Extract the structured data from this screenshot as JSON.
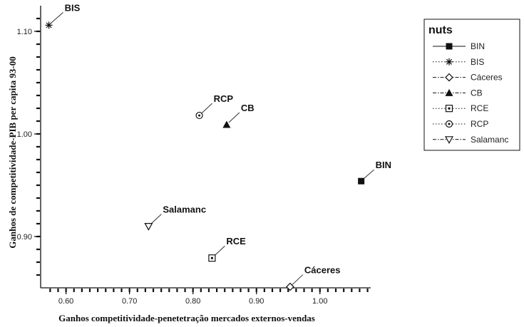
{
  "chart_data": {
    "type": "scatter",
    "xlabel": "Ganhos competitividade-penetetração mercados externos-vendas",
    "ylabel": "Ganhos de competitividade-PIB per capita 93-00",
    "xlim": [
      0.56,
      1.08
    ],
    "ylim": [
      0.85,
      1.125
    ],
    "xticks": [
      0.6,
      0.7,
      0.8,
      0.9,
      1.0
    ],
    "xtick_labels": [
      "0.60",
      "0.70",
      "0.80",
      "0.90",
      "1.00"
    ],
    "yticks": [
      0.9,
      1.0,
      1.1
    ],
    "ytick_labels": [
      "0.90",
      "1.00",
      "1.10"
    ],
    "legend": {
      "title": "nuts",
      "position": "top-right"
    },
    "series": [
      {
        "name": "BIN",
        "marker": "filled-square",
        "line": "solid",
        "x": 1.065,
        "y": 0.954,
        "label": "BIN"
      },
      {
        "name": "BIS",
        "marker": "asterisk",
        "line": "dotted",
        "x": 0.573,
        "y": 1.106,
        "label": "BIS"
      },
      {
        "name": "Cáceres",
        "marker": "diamond",
        "line": "dash-dot",
        "x": 0.953,
        "y": 0.851,
        "label": "Cáceres"
      },
      {
        "name": "CB",
        "marker": "filled-triangle",
        "line": "dash-dot",
        "x": 0.853,
        "y": 1.009,
        "label": "CB"
      },
      {
        "name": "RCE",
        "marker": "dotted-square",
        "line": "dotted",
        "x": 0.83,
        "y": 0.879,
        "label": "RCE"
      },
      {
        "name": "RCP",
        "marker": "dotted-circle",
        "line": "dotted",
        "x": 0.81,
        "y": 1.018,
        "label": "RCP"
      },
      {
        "name": "Salamanc",
        "marker": "triangle-down",
        "line": "dash-dot",
        "x": 0.73,
        "y": 0.91,
        "label": "Salamanc"
      }
    ]
  }
}
